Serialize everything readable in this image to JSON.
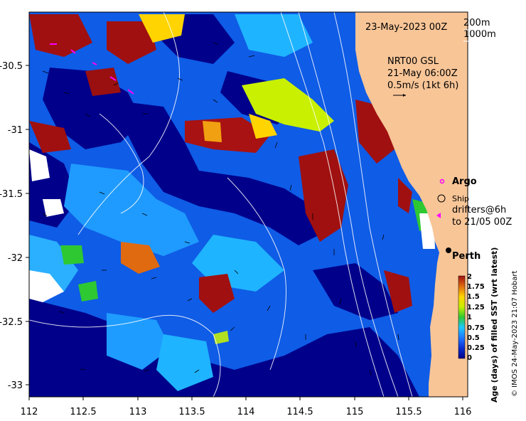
{
  "map": {
    "date_label": "23-May-2023 00Z",
    "contour_legend": [
      "200m",
      "1000m"
    ],
    "current_source": "NRT00 GSL",
    "current_time": "21-May 06:00Z",
    "vector_scale": "0.5m/s (1kt 6h)",
    "city": "Perth",
    "legend": {
      "argo": "Argo",
      "ship": "Ship",
      "drifters_line1": "drifters@6h",
      "drifters_line2": "to 21/05 00Z"
    },
    "credit": "© IMOS 24-May-2023 21:07 Hobart",
    "colors": {
      "land": "#f8c597",
      "ocean_deep": "#00008b",
      "argo_marker": "#ff00ff",
      "drifter_marker": "#ff00ff"
    }
  },
  "axes": {
    "x_ticks": [
      "112",
      "112.5",
      "113",
      "113.5",
      "114",
      "114.5",
      "115",
      "115.5",
      "116"
    ],
    "y_ticks": [
      "-30.5",
      "-31",
      "-31.5",
      "-32",
      "-32.5",
      "-33"
    ]
  },
  "colorbar": {
    "label": "Age (days) of filled SST (wrt latest)",
    "ticks": [
      "2",
      "1.75",
      "1.5",
      "1.25",
      "1",
      "0.75",
      "0.5",
      "0.25",
      "0"
    ]
  }
}
